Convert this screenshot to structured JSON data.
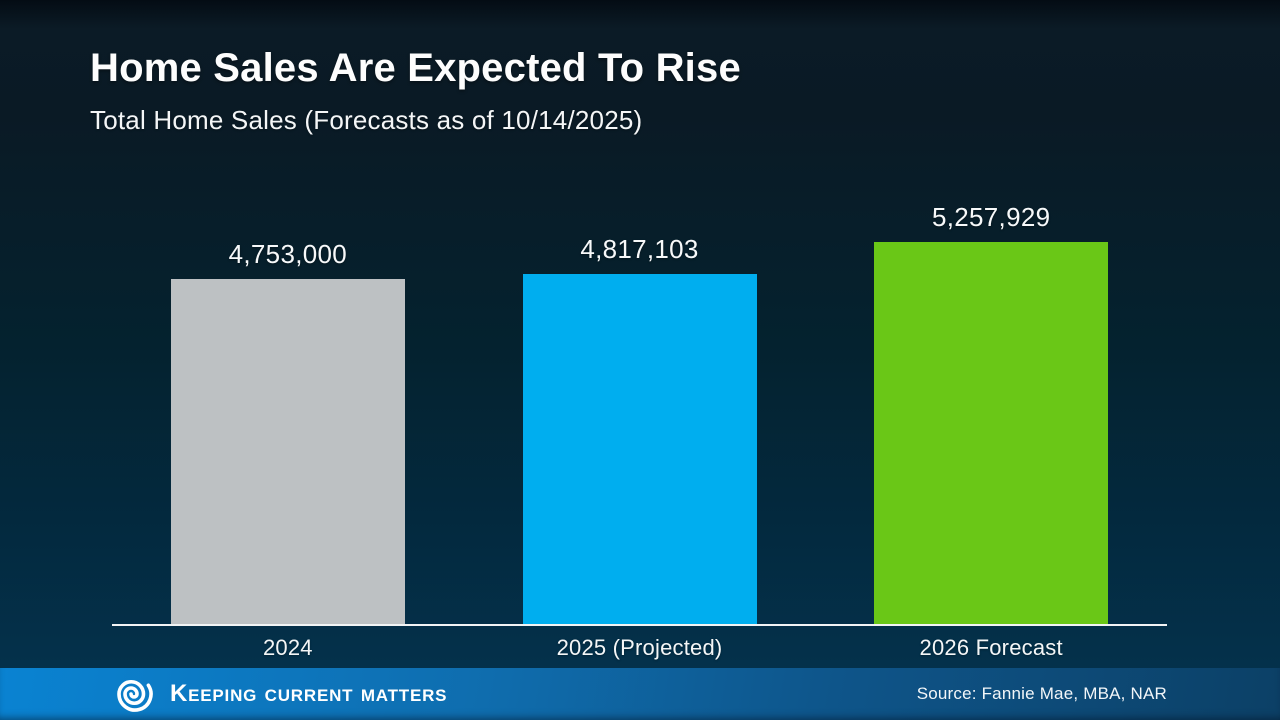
{
  "slide": {
    "title": "Home Sales Are Expected To Rise",
    "subtitle": "Total Home Sales (Forecasts as of 10/14/2025)"
  },
  "chart_data": {
    "type": "bar",
    "title": "Home Sales Are Expected To Rise",
    "subtitle": "Total Home Sales (Forecasts as of 10/14/2025)",
    "categories": [
      "2024",
      "2025 (Projected)",
      "2026 Forecast"
    ],
    "values": [
      4753000,
      4817103,
      5257929
    ],
    "value_labels": [
      "4,753,000",
      "4,817,103",
      "5,257,929"
    ],
    "bar_colors": [
      "#bdc1c3",
      "#00aeef",
      "#6ac717"
    ],
    "ylim": [
      0,
      5257929
    ],
    "xlabel": "",
    "ylabel": "",
    "grid": false,
    "legend": "none",
    "baseline_color": "#f2f4f5",
    "background": "dark-navy-gradient"
  },
  "footer": {
    "brand": "Keeping Current Matters",
    "brand_logo": "kcm-spiral-icon",
    "source": "Source: Fannie Mae, MBA, NAR",
    "background_left": "#0a83d2",
    "background_right": "#0c4066"
  }
}
